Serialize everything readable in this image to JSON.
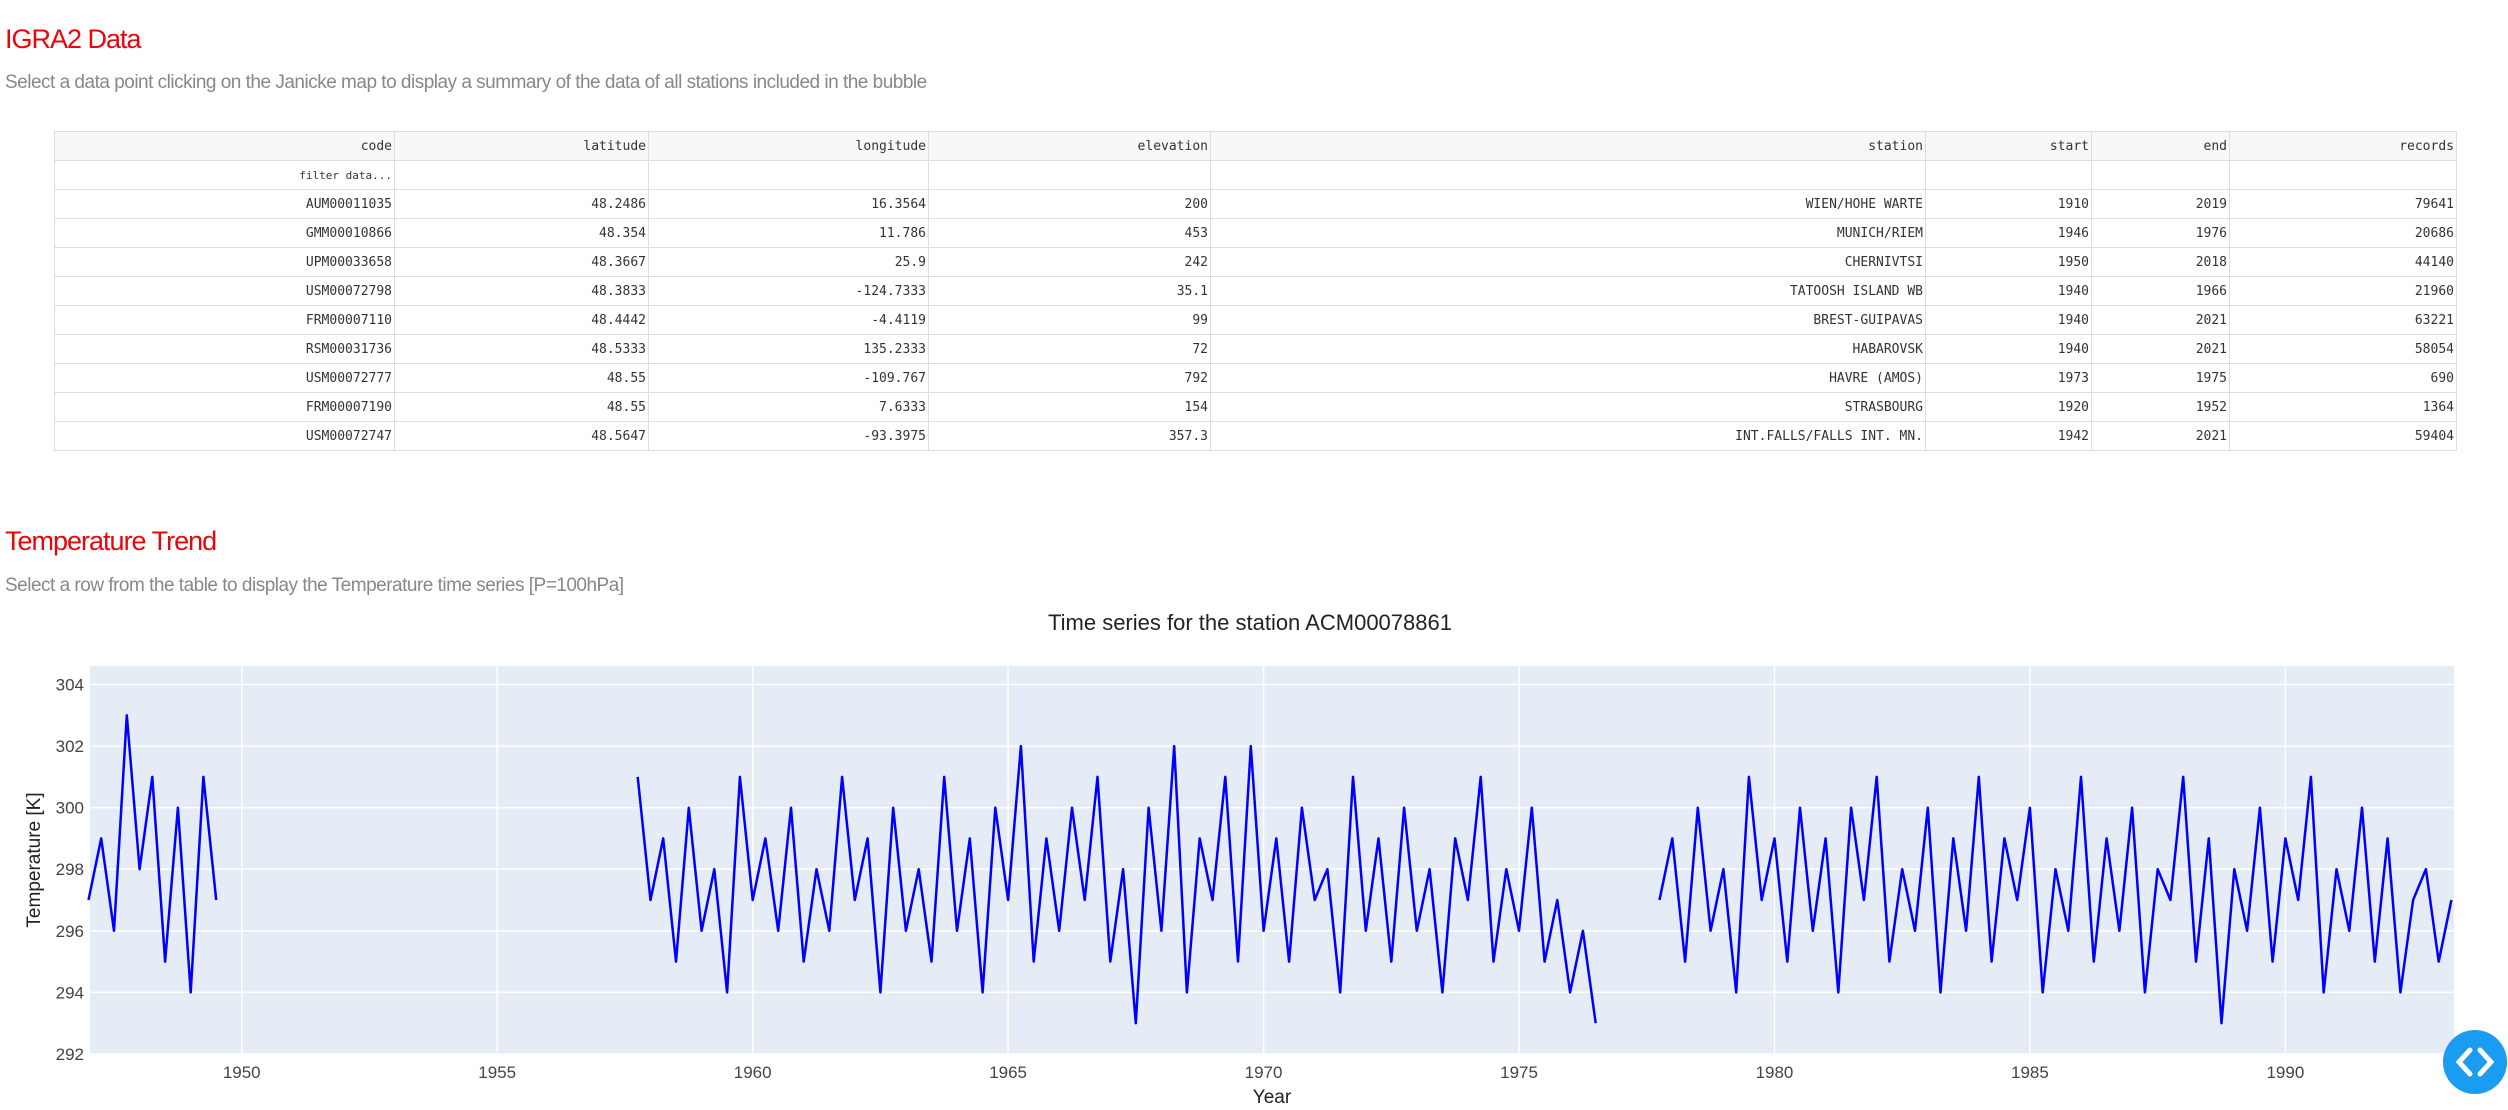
{
  "header": {
    "title": "IGRA2 Data",
    "subtitle": "Select a data point clicking on the Janicke map to display a summary of the data of all stations included in the bubble"
  },
  "table": {
    "columns": [
      "code",
      "latitude",
      "longitude",
      "elevation",
      "station",
      "start",
      "end",
      "records"
    ],
    "filter_placeholder": "filter data...",
    "rows": [
      [
        "AUM00011035",
        48.2486,
        16.3564,
        200,
        "WIEN/HOHE WARTE",
        1910,
        2019,
        79641
      ],
      [
        "GMM00010866",
        48.354,
        11.786,
        453,
        "MUNICH/RIEM",
        1946,
        1976,
        20686
      ],
      [
        "UPM00033658",
        48.3667,
        25.9,
        242,
        "CHERNIVTSI",
        1950,
        2018,
        44140
      ],
      [
        "USM00072798",
        48.3833,
        -124.7333,
        35.1,
        "TATOOSH ISLAND WB",
        1940,
        1966,
        21960
      ],
      [
        "FRM00007110",
        48.4442,
        -4.4119,
        99,
        "BREST-GUIPAVAS",
        1940,
        2021,
        63221
      ],
      [
        "RSM00031736",
        48.5333,
        135.2333,
        72,
        "HABAROVSK",
        1940,
        2021,
        58054
      ],
      [
        "USM00072777",
        48.55,
        -109.767,
        792,
        "HAVRE (AMOS)",
        1973,
        1975,
        690
      ],
      [
        "FRM00007190",
        48.55,
        7.6333,
        154,
        "STRASBOURG",
        1920,
        1952,
        1364
      ],
      [
        "USM00072747",
        48.5647,
        -93.3975,
        357.3,
        "INT.FALLS/FALLS INT. MN.",
        1942,
        2021,
        59404
      ]
    ]
  },
  "trend": {
    "title": "Temperature Trend",
    "subtitle": "Select a row from the table to display the Temperature time series [P=100hPa]"
  },
  "chart_data": {
    "type": "line",
    "title": "Time series for the station ACM00078861",
    "x_label": "Year",
    "y_label": "Temperature [K]",
    "xlim": [
      1947.03,
      1993.3
    ],
    "ylim": [
      292,
      304.6
    ],
    "xticks": [
      1950,
      1955,
      1960,
      1965,
      1970,
      1975,
      1980,
      1985,
      1990
    ],
    "yticks": [
      292,
      294,
      296,
      298,
      300,
      302,
      304
    ],
    "grid": true,
    "x": [
      1947,
      1947.25,
      1947.5,
      1947.75,
      1948,
      1948.25,
      1948.5,
      1948.75,
      1949,
      1949.25,
      1949.5,
      1953,
      1957.75,
      1958,
      1958.25,
      1958.5,
      1958.75,
      1959,
      1959.25,
      1959.5,
      1959.75,
      1960,
      1960.25,
      1960.5,
      1960.75,
      1961,
      1961.25,
      1961.5,
      1961.75,
      1962,
      1962.25,
      1962.5,
      1962.75,
      1963,
      1963.25,
      1963.5,
      1963.75,
      1964,
      1964.25,
      1964.5,
      1964.75,
      1965,
      1965.25,
      1965.5,
      1965.75,
      1966,
      1966.25,
      1966.5,
      1966.75,
      1967,
      1967.25,
      1967.5,
      1967.75,
      1968,
      1968.25,
      1968.5,
      1968.75,
      1969,
      1969.25,
      1969.5,
      1969.75,
      1970,
      1970.25,
      1970.5,
      1970.75,
      1971,
      1971.25,
      1971.5,
      1971.75,
      1972,
      1972.25,
      1972.5,
      1972.75,
      1973,
      1973.25,
      1973.5,
      1973.75,
      1974,
      1974.25,
      1974.5,
      1974.75,
      1975,
      1975.25,
      1975.5,
      1975.75,
      1976,
      1976.25,
      1976.5,
      1977,
      1977.75,
      1978,
      1978.25,
      1978.5,
      1978.75,
      1979,
      1979.25,
      1979.5,
      1979.75,
      1980,
      1980.25,
      1980.5,
      1980.75,
      1981,
      1981.25,
      1981.5,
      1981.75,
      1982,
      1982.25,
      1982.5,
      1982.75,
      1983,
      1983.25,
      1983.5,
      1983.75,
      1984,
      1984.25,
      1984.5,
      1984.75,
      1985,
      1985.25,
      1985.5,
      1985.75,
      1986,
      1986.25,
      1986.5,
      1986.75,
      1987,
      1987.25,
      1987.5,
      1987.75,
      1988,
      1988.25,
      1988.5,
      1988.75,
      1989,
      1989.25,
      1989.5,
      1989.75,
      1990,
      1990.25,
      1990.5,
      1990.75,
      1991,
      1991.25,
      1991.5,
      1991.75,
      1992,
      1992.25,
      1992.5,
      1992.75,
      1993,
      1993.25
    ],
    "series": [
      {
        "name": "temperature",
        "color": "#0000ff",
        "values": [
          297,
          299,
          296,
          303,
          298,
          301,
          295,
          300,
          294,
          301,
          297,
          null,
          301,
          297,
          299,
          295,
          300,
          296,
          298,
          294,
          301,
          297,
          299,
          296,
          300,
          295,
          298,
          296,
          301,
          297,
          299,
          294,
          300,
          296,
          298,
          295,
          301,
          296,
          299,
          294,
          300,
          297,
          302,
          295,
          299,
          296,
          300,
          297,
          301,
          295,
          298,
          293,
          300,
          296,
          302,
          294,
          299,
          297,
          301,
          295,
          302,
          296,
          299,
          295,
          300,
          297,
          298,
          294,
          301,
          296,
          299,
          295,
          300,
          296,
          298,
          294,
          299,
          297,
          301,
          295,
          298,
          296,
          300,
          295,
          297,
          294,
          296,
          293,
          null,
          297,
          299,
          295,
          300,
          296,
          298,
          294,
          301,
          297,
          299,
          295,
          300,
          296,
          299,
          294,
          300,
          297,
          301,
          295,
          298,
          296,
          300,
          294,
          299,
          296,
          301,
          295,
          299,
          297,
          300,
          294,
          298,
          296,
          301,
          295,
          299,
          296,
          300,
          294,
          298,
          297,
          301,
          295,
          299,
          293,
          298,
          296,
          300,
          295,
          299,
          297,
          301,
          294,
          298,
          296,
          300,
          295,
          299,
          294,
          297,
          298,
          295,
          297
        ]
      }
    ]
  }
}
